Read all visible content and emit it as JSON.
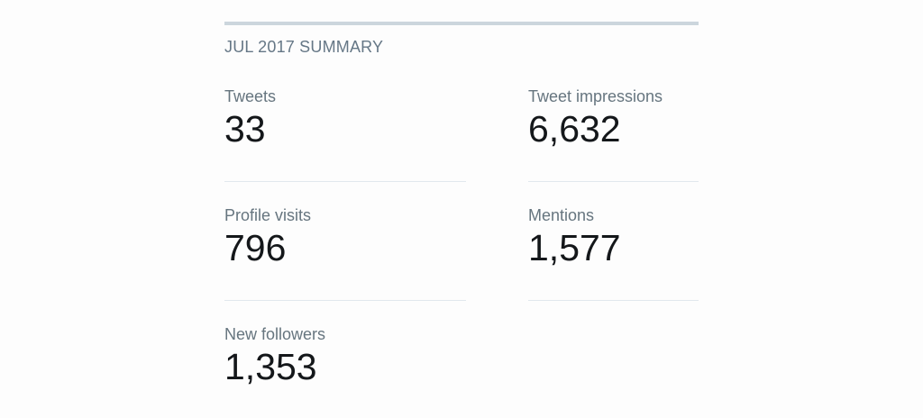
{
  "summary": {
    "title": "JUL 2017 SUMMARY",
    "metrics": [
      {
        "label": "Tweets",
        "value": "33"
      },
      {
        "label": "Tweet impressions",
        "value": "6,632"
      },
      {
        "label": "Profile visits",
        "value": "796"
      },
      {
        "label": "Mentions",
        "value": "1,577"
      },
      {
        "label": "New followers",
        "value": "1,353"
      }
    ]
  }
}
